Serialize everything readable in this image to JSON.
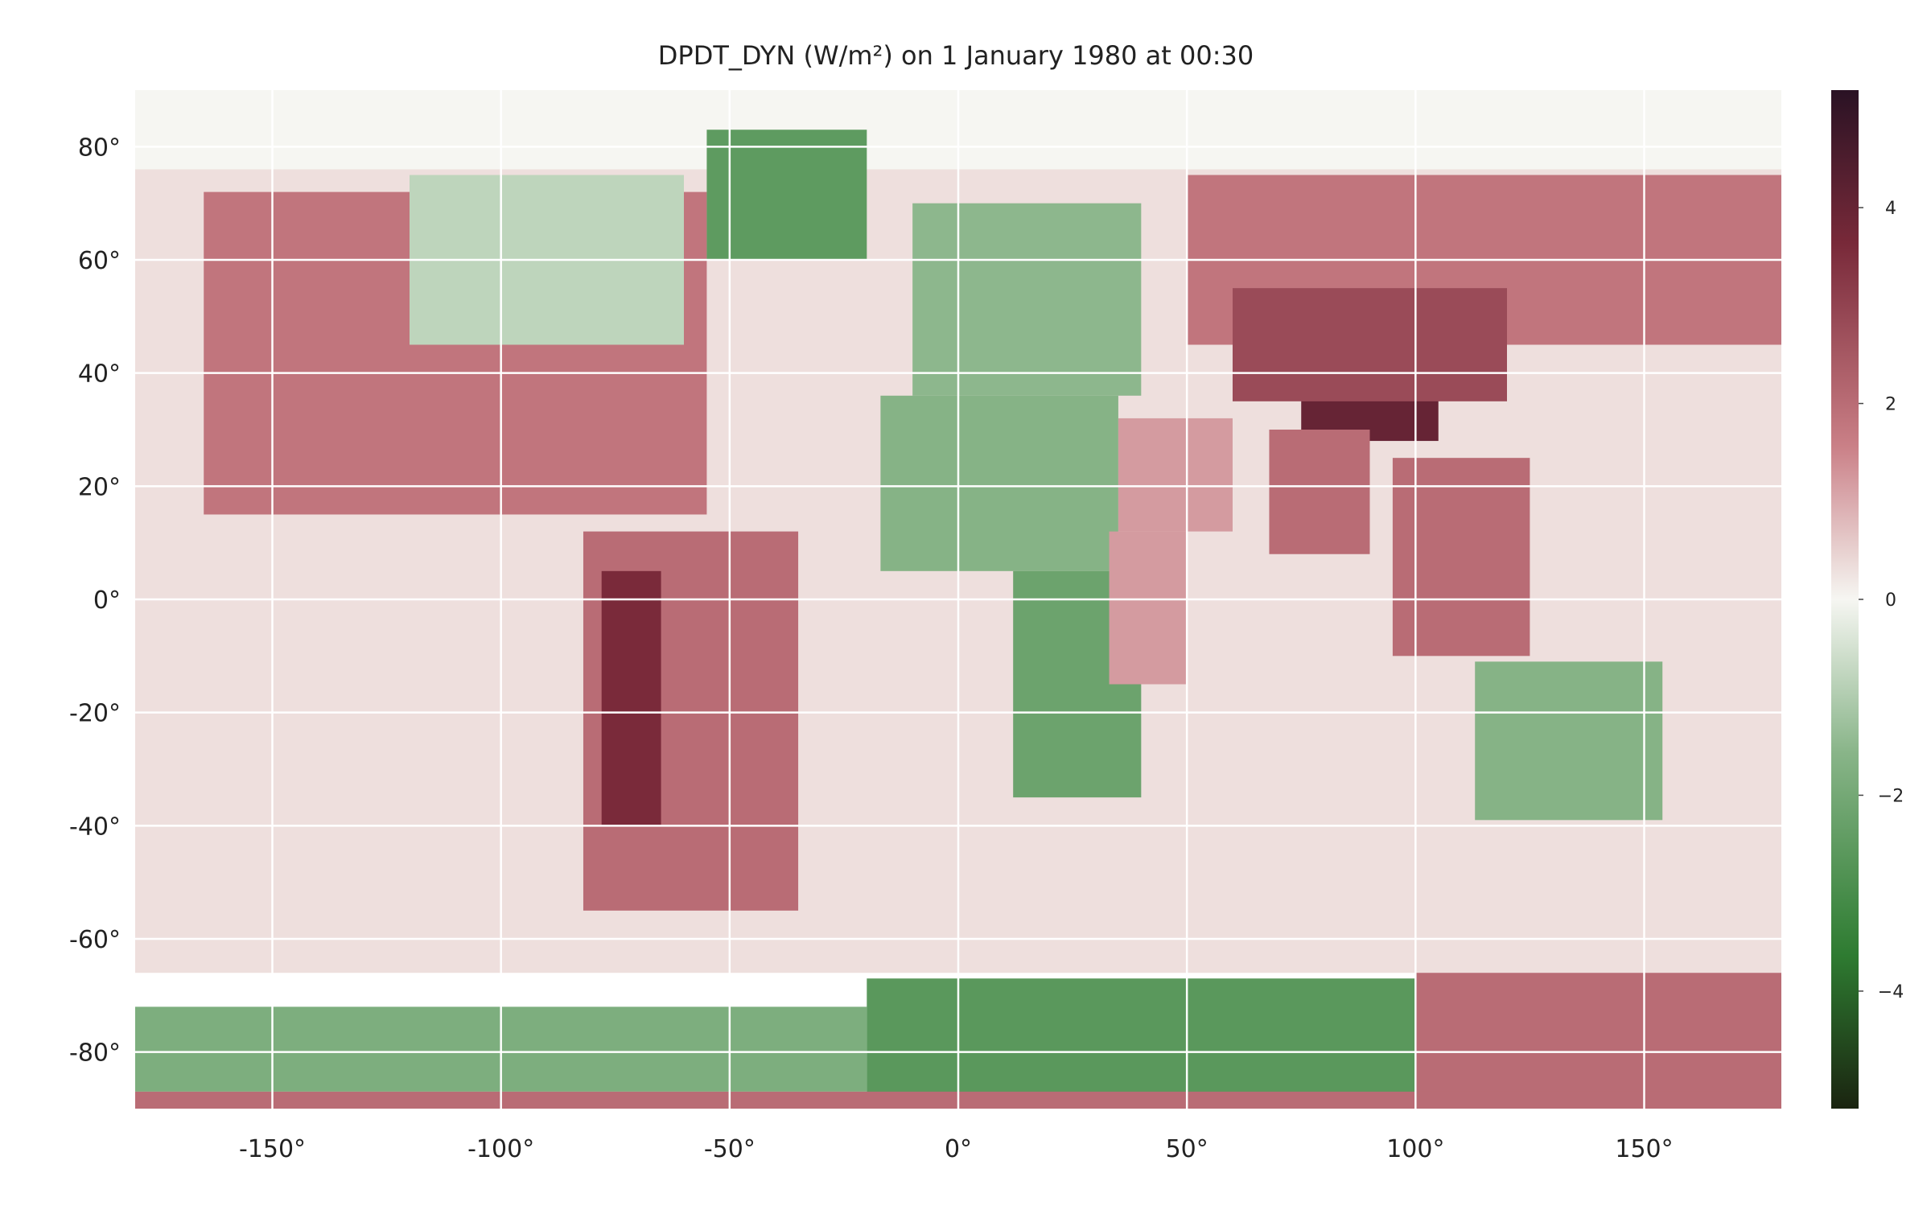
{
  "chart_data": {
    "type": "heatmap",
    "title": "DPDT_DYN (W/m²) on 1 January 1980 at 00:30",
    "xlabel": "",
    "ylabel": "",
    "xlim": [
      -180,
      180
    ],
    "ylim": [
      -90,
      90
    ],
    "xticks": [
      -150,
      -100,
      -50,
      0,
      50,
      100,
      150
    ],
    "xtick_labels": [
      "-150°",
      "-100°",
      "-50°",
      "0°",
      "50°",
      "100°",
      "150°"
    ],
    "yticks": [
      80,
      60,
      40,
      20,
      0,
      -20,
      -40,
      -60,
      -80
    ],
    "ytick_labels": [
      "80°",
      "60°",
      "40°",
      "20°",
      "0°",
      "-20°",
      "-40°",
      "-60°",
      "-80°"
    ],
    "grid": true,
    "colormap": "diverging green (negative) - white (0) - red/maroon (positive)",
    "colorbar": {
      "range": [
        -5.2,
        5.2
      ],
      "ticks": [
        4,
        2,
        0,
        -2,
        -4
      ],
      "tick_labels": [
        "4",
        "2",
        "0",
        "−2",
        "−4"
      ],
      "colors": {
        "min": "#1a2410",
        "neg_strong": "#2e7d32",
        "neg_mid": "#86b386",
        "zero": "#f6f6f2",
        "pos_mid": "#c97d84",
        "pos_strong": "#7a2a3a",
        "max": "#2a1224"
      }
    },
    "regions": [
      {
        "name": "ocean",
        "lon": [
          -180,
          180
        ],
        "lat": [
          -66,
          90
        ],
        "value": 0.3
      },
      {
        "name": "arctic",
        "lon": [
          -180,
          180
        ],
        "lat": [
          76,
          90
        ],
        "value": 0.0
      },
      {
        "name": "north-america",
        "lon": [
          -165,
          -55
        ],
        "lat": [
          15,
          72
        ],
        "value": 1.8
      },
      {
        "name": "canada-east",
        "lon": [
          -120,
          -60
        ],
        "lat": [
          45,
          75
        ],
        "value": -0.8
      },
      {
        "name": "greenland",
        "lon": [
          -55,
          -20
        ],
        "lat": [
          60,
          83
        ],
        "value": -2.5
      },
      {
        "name": "south-america",
        "lon": [
          -82,
          -35
        ],
        "lat": [
          -55,
          12
        ],
        "value": 2.0
      },
      {
        "name": "andes",
        "lon": [
          -78,
          -65
        ],
        "lat": [
          -40,
          5
        ],
        "value": 3.6
      },
      {
        "name": "europe",
        "lon": [
          -10,
          40
        ],
        "lat": [
          36,
          70
        ],
        "value": -1.5
      },
      {
        "name": "north-africa",
        "lon": [
          -17,
          35
        ],
        "lat": [
          5,
          36
        ],
        "value": -1.6
      },
      {
        "name": "southern-africa",
        "lon": [
          12,
          40
        ],
        "lat": [
          -35,
          5
        ],
        "value": -2.2
      },
      {
        "name": "east-africa",
        "lon": [
          33,
          50
        ],
        "lat": [
          -15,
          12
        ],
        "value": 1.2
      },
      {
        "name": "arabia",
        "lon": [
          35,
          60
        ],
        "lat": [
          12,
          32
        ],
        "value": 1.2
      },
      {
        "name": "russia-siberia",
        "lon": [
          50,
          180
        ],
        "lat": [
          45,
          75
        ],
        "value": 1.8
      },
      {
        "name": "tibet",
        "lon": [
          75,
          105
        ],
        "lat": [
          28,
          40
        ],
        "value": 4.0
      },
      {
        "name": "central-asia",
        "lon": [
          60,
          120
        ],
        "lat": [
          35,
          55
        ],
        "value": 2.8
      },
      {
        "name": "india",
        "lon": [
          68,
          90
        ],
        "lat": [
          8,
          30
        ],
        "value": 2.0
      },
      {
        "name": "southeast-asia",
        "lon": [
          95,
          125
        ],
        "lat": [
          -10,
          25
        ],
        "value": 2.0
      },
      {
        "name": "australia",
        "lon": [
          113,
          154
        ],
        "lat": [
          -39,
          -11
        ],
        "value": -1.6
      },
      {
        "name": "antarctica-west",
        "lon": [
          -180,
          -20
        ],
        "lat": [
          -87,
          -72
        ],
        "value": -1.8
      },
      {
        "name": "antarctica-east",
        "lon": [
          -20,
          100
        ],
        "lat": [
          -88,
          -67
        ],
        "value": -2.6
      },
      {
        "name": "antarctica-pacific",
        "lon": [
          100,
          180
        ],
        "lat": [
          -88,
          -66
        ],
        "value": 2.0
      },
      {
        "name": "south-pole-band",
        "lon": [
          -180,
          180
        ],
        "lat": [
          -90,
          -87
        ],
        "value": 2.0
      }
    ]
  }
}
